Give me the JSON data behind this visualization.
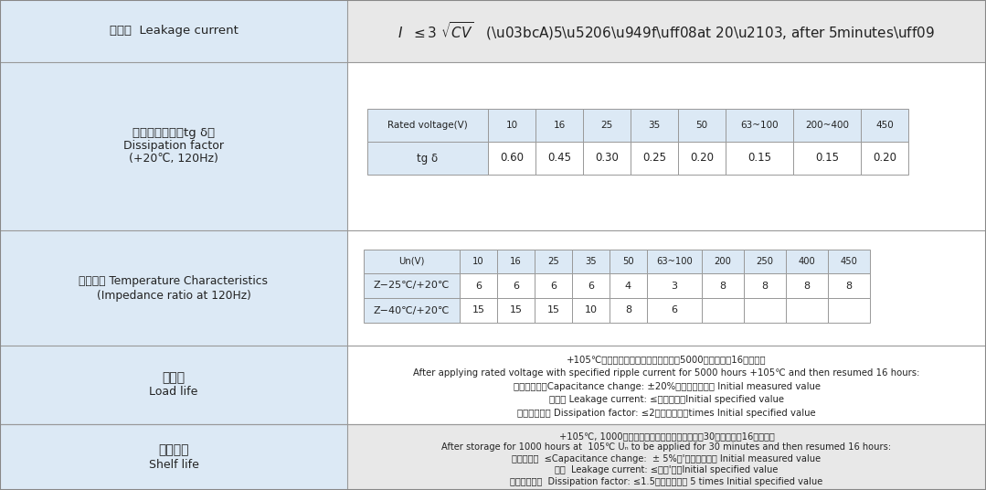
{
  "light_blue": "#dce9f5",
  "white": "#ffffff",
  "light_gray": "#e8e8e8",
  "border_color": "#999999",
  "row1_label_cn": "漏电流  Leakage current",
  "row2_label_line1": "损耗角正切値（tg δ）",
  "row2_label_line2": "Dissipation factor",
  "row2_label_line3": "(+20℃, 120Hz)",
  "row2_table_headers": [
    "Rated voltage(V)",
    "10",
    "16",
    "25",
    "35",
    "50",
    "63~100",
    "200~400",
    "450"
  ],
  "row2_table_row1_label": "tg δ",
  "row2_table_row1_values": [
    "0.60",
    "0.45",
    "0.30",
    "0.25",
    "0.20",
    "0.15",
    "0.15",
    "0.20"
  ],
  "row3_label_line1": "温度特性 Temperature Characteristics",
  "row3_label_line2": "(Impedance ratio at 120Hz)",
  "row3_table_headers": [
    "Un(V)",
    "10",
    "16",
    "25",
    "35",
    "50",
    "63~100",
    "200",
    "250",
    "400",
    "450"
  ],
  "row3_table_row1_label": "Z−25℃/+20℃",
  "row3_table_row1_values": [
    "6",
    "6",
    "6",
    "6",
    "4",
    "3",
    "8",
    "8",
    "8",
    "8"
  ],
  "row3_table_row2_label": "Z−40℃/+20℃",
  "row3_table_row2_values": [
    "15",
    "15",
    "15",
    "10",
    "8",
    "6",
    "",
    "",
    "",
    ""
  ],
  "row4_label_line1": "耐久性",
  "row4_label_line2": "Load life",
  "row4_lines": [
    "+105℃施加带额定纹波电流的额定电剸5000小时，恢复16小时后：",
    "After applying rated voltage with specified ripple current for 5000 hours +105℃ and then resumed 16 hours:",
    "电容量变化率Capacitance change: ±20%初始测量値以内 Initial measured value",
    "漏电流 Leakage current: ≤初始规定値Initial specified value",
    "损耗角正切値 Dissipation factor: ≤2倍初始规定値times Initial specified value"
  ],
  "row5_label_line1": "高温贮存",
  "row5_label_line2": "Shelf life",
  "row5_lines": [
    "+105℃, 1000小时贮存后，加额定工作电压处礆30分钟，恢复16小时后：",
    "After storage for 1000 hours at  105℃ Uₙ to be applied for 30 minutes and then resumed 16 hours:",
    "电容量变化  ≤Capacitance change:  ± 5%初'，测量（以内 Initial measured value",
    "漏电  Leakage current: ≤初始'定値Initial specified value",
    "损耗角正切値  Dissipation factor: ≤1.5倍初始规定値 5 times Initial specified value"
  ]
}
